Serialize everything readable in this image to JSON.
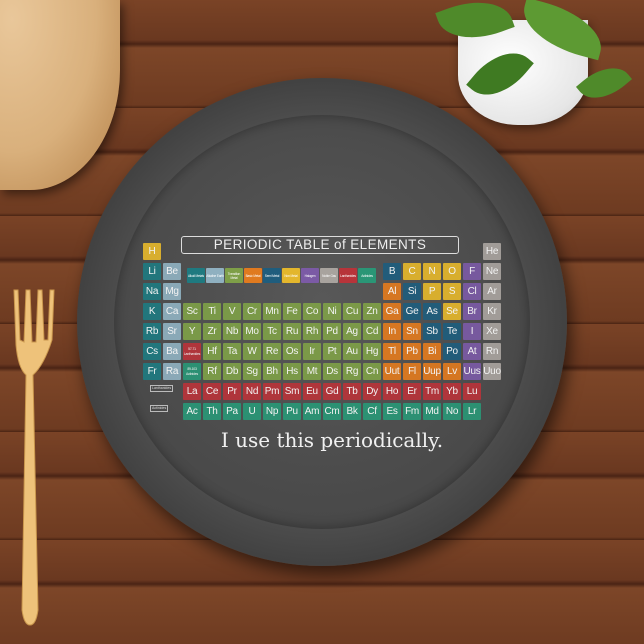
{
  "title": "PERIODIC TABLE of ELEMENTS",
  "caption": "I use this periodically.",
  "colors": {
    "alkali": "#1f7a80",
    "alkaline": "#8fb0c0",
    "transition": "#7e9f48",
    "basic": "#e07a1f",
    "semi": "#1f5d7d",
    "nonmetal": "#e3b62c",
    "halogen": "#7b5aa5",
    "noble": "#a8a39e",
    "lanthanide": "#b7343a",
    "actinide": "#2a9676"
  },
  "legend": [
    {
      "label": "Alkali Metals",
      "cat": "alkali"
    },
    {
      "label": "Alkaline Earth",
      "cat": "alkaline"
    },
    {
      "label": "Transition Metal",
      "cat": "transition"
    },
    {
      "label": "Basic Metal",
      "cat": "basic"
    },
    {
      "label": "Semi Metal",
      "cat": "semi"
    },
    {
      "label": "Non Metal",
      "cat": "nonmetal"
    },
    {
      "label": "Halogen",
      "cat": "halogen"
    },
    {
      "label": "Noble Gas",
      "cat": "noble"
    },
    {
      "label": "Lanthanides",
      "cat": "lanthanide"
    },
    {
      "label": "Actinides",
      "cat": "actinide"
    }
  ],
  "row_labels": {
    "lanthanides": "Lanthanides",
    "actinides": "Actinides"
  },
  "elements": [
    [
      [
        "H",
        "nonmetal",
        1
      ],
      [
        "He",
        "noble",
        18
      ]
    ],
    [
      [
        "Li",
        "alkali",
        1
      ],
      [
        "Be",
        "alkaline",
        2
      ],
      [
        "B",
        "semi",
        13
      ],
      [
        "C",
        "nonmetal",
        14
      ],
      [
        "N",
        "nonmetal",
        15
      ],
      [
        "O",
        "nonmetal",
        16
      ],
      [
        "F",
        "halogen",
        17
      ],
      [
        "Ne",
        "noble",
        18
      ]
    ],
    [
      [
        "Na",
        "alkali",
        1
      ],
      [
        "Mg",
        "alkaline",
        2
      ],
      [
        "Al",
        "basic",
        13
      ],
      [
        "Si",
        "semi",
        14
      ],
      [
        "P",
        "nonmetal",
        15
      ],
      [
        "S",
        "nonmetal",
        16
      ],
      [
        "Cl",
        "halogen",
        17
      ],
      [
        "Ar",
        "noble",
        18
      ]
    ],
    [
      [
        "K",
        "alkali",
        1
      ],
      [
        "Ca",
        "alkaline",
        2
      ],
      [
        "Sc",
        "transition",
        3
      ],
      [
        "Ti",
        "transition",
        4
      ],
      [
        "V",
        "transition",
        5
      ],
      [
        "Cr",
        "transition",
        6
      ],
      [
        "Mn",
        "transition",
        7
      ],
      [
        "Fe",
        "transition",
        8
      ],
      [
        "Co",
        "transition",
        9
      ],
      [
        "Ni",
        "transition",
        10
      ],
      [
        "Cu",
        "transition",
        11
      ],
      [
        "Zn",
        "transition",
        12
      ],
      [
        "Ga",
        "basic",
        13
      ],
      [
        "Ge",
        "semi",
        14
      ],
      [
        "As",
        "semi",
        15
      ],
      [
        "Se",
        "nonmetal",
        16
      ],
      [
        "Br",
        "halogen",
        17
      ],
      [
        "Kr",
        "noble",
        18
      ]
    ],
    [
      [
        "Rb",
        "alkali",
        1
      ],
      [
        "Sr",
        "alkaline",
        2
      ],
      [
        "Y",
        "transition",
        3
      ],
      [
        "Zr",
        "transition",
        4
      ],
      [
        "Nb",
        "transition",
        5
      ],
      [
        "Mo",
        "transition",
        6
      ],
      [
        "Tc",
        "transition",
        7
      ],
      [
        "Ru",
        "transition",
        8
      ],
      [
        "Rh",
        "transition",
        9
      ],
      [
        "Pd",
        "transition",
        10
      ],
      [
        "Ag",
        "transition",
        11
      ],
      [
        "Cd",
        "transition",
        12
      ],
      [
        "In",
        "basic",
        13
      ],
      [
        "Sn",
        "basic",
        14
      ],
      [
        "Sb",
        "semi",
        15
      ],
      [
        "Te",
        "semi",
        16
      ],
      [
        "I",
        "halogen",
        17
      ],
      [
        "Xe",
        "noble",
        18
      ]
    ],
    [
      [
        "Cs",
        "alkali",
        1
      ],
      [
        "Ba",
        "alkaline",
        2
      ],
      [
        "57-71 Lanthanides",
        "lanthanide",
        3
      ],
      [
        "Hf",
        "transition",
        4
      ],
      [
        "Ta",
        "transition",
        5
      ],
      [
        "W",
        "transition",
        6
      ],
      [
        "Re",
        "transition",
        7
      ],
      [
        "Os",
        "transition",
        8
      ],
      [
        "Ir",
        "transition",
        9
      ],
      [
        "Pt",
        "transition",
        10
      ],
      [
        "Au",
        "transition",
        11
      ],
      [
        "Hg",
        "transition",
        12
      ],
      [
        "Tl",
        "basic",
        13
      ],
      [
        "Pb",
        "basic",
        14
      ],
      [
        "Bi",
        "basic",
        15
      ],
      [
        "Po",
        "semi",
        16
      ],
      [
        "At",
        "halogen",
        17
      ],
      [
        "Rn",
        "noble",
        18
      ]
    ],
    [
      [
        "Fr",
        "alkali",
        1
      ],
      [
        "Ra",
        "alkaline",
        2
      ],
      [
        "89-103 Actinides",
        "actinide",
        3
      ],
      [
        "Rf",
        "transition",
        4
      ],
      [
        "Db",
        "transition",
        5
      ],
      [
        "Sg",
        "transition",
        6
      ],
      [
        "Bh",
        "transition",
        7
      ],
      [
        "Hs",
        "transition",
        8
      ],
      [
        "Mt",
        "transition",
        9
      ],
      [
        "Ds",
        "transition",
        10
      ],
      [
        "Rg",
        "transition",
        11
      ],
      [
        "Cn",
        "transition",
        12
      ],
      [
        "Uut",
        "basic",
        13
      ],
      [
        "Fl",
        "basic",
        14
      ],
      [
        "Uup",
        "basic",
        15
      ],
      [
        "Lv",
        "basic",
        16
      ],
      [
        "Uus",
        "halogen",
        17
      ],
      [
        "Uuo",
        "noble",
        18
      ]
    ],
    [
      [
        "La",
        "lanthanide",
        3
      ],
      [
        "Ce",
        "lanthanide",
        4
      ],
      [
        "Pr",
        "lanthanide",
        5
      ],
      [
        "Nd",
        "lanthanide",
        6
      ],
      [
        "Pm",
        "lanthanide",
        7
      ],
      [
        "Sm",
        "lanthanide",
        8
      ],
      [
        "Eu",
        "lanthanide",
        9
      ],
      [
        "Gd",
        "lanthanide",
        10
      ],
      [
        "Tb",
        "lanthanide",
        11
      ],
      [
        "Dy",
        "lanthanide",
        12
      ],
      [
        "Ho",
        "lanthanide",
        13
      ],
      [
        "Er",
        "lanthanide",
        14
      ],
      [
        "Tm",
        "lanthanide",
        15
      ],
      [
        "Yb",
        "lanthanide",
        16
      ],
      [
        "Lu",
        "lanthanide",
        17
      ]
    ],
    [
      [
        "Ac",
        "actinide",
        3
      ],
      [
        "Th",
        "actinide",
        4
      ],
      [
        "Pa",
        "actinide",
        5
      ],
      [
        "U",
        "actinide",
        6
      ],
      [
        "Np",
        "actinide",
        7
      ],
      [
        "Pu",
        "actinide",
        8
      ],
      [
        "Am",
        "actinide",
        9
      ],
      [
        "Cm",
        "actinide",
        10
      ],
      [
        "Bk",
        "actinide",
        11
      ],
      [
        "Cf",
        "actinide",
        12
      ],
      [
        "Es",
        "actinide",
        13
      ],
      [
        "Fm",
        "actinide",
        14
      ],
      [
        "Md",
        "actinide",
        15
      ],
      [
        "No",
        "actinide",
        16
      ],
      [
        "Lr",
        "actinide",
        17
      ]
    ]
  ]
}
